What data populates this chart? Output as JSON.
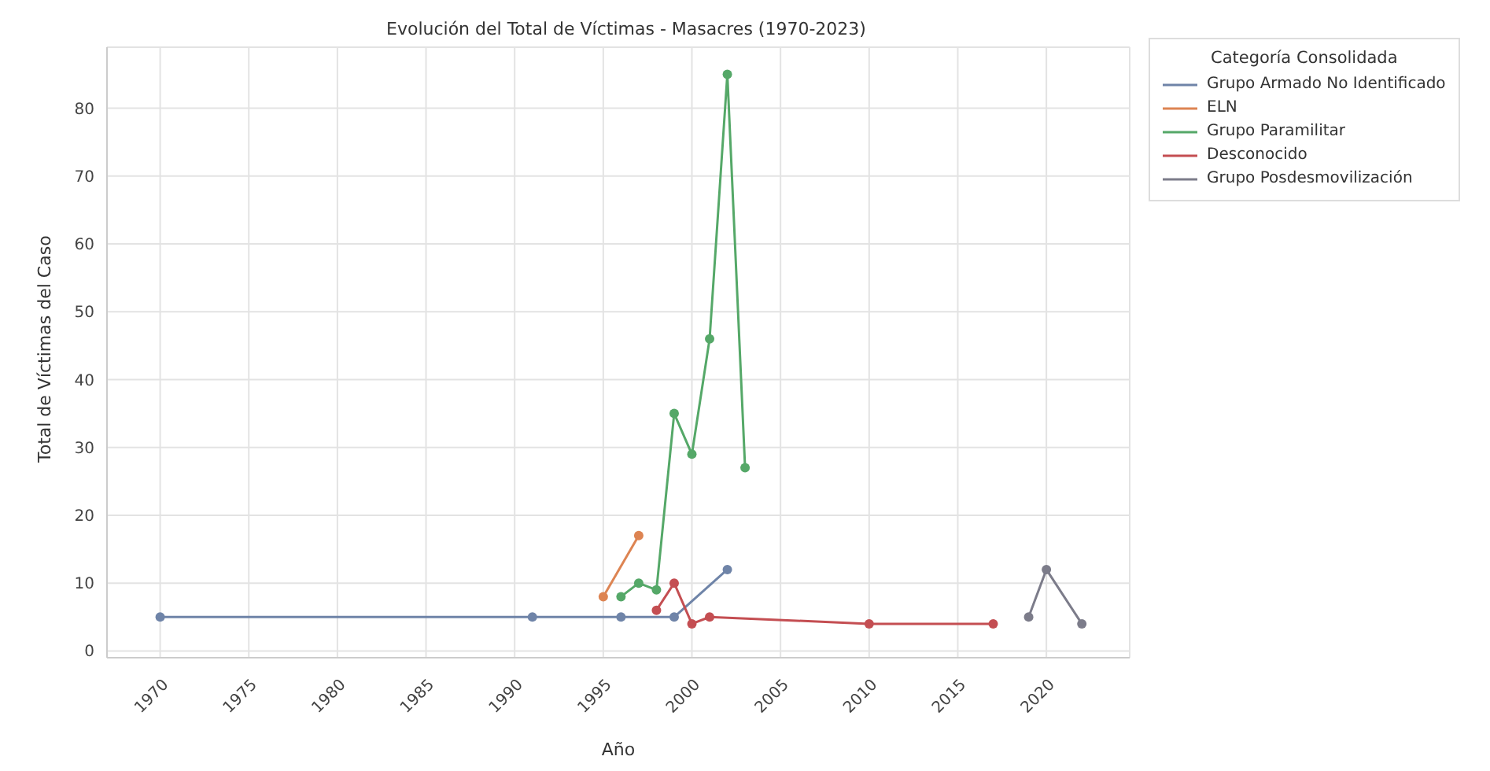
{
  "chart_data": {
    "type": "line",
    "title": "Evolución del Total de Víctimas - Masacres (1970-2023)",
    "xlabel": "Año",
    "ylabel": "Total de Víctimas del Caso",
    "legend_title": "Categoría Consolidada",
    "series": [
      {
        "name": "Grupo Armado No Identificado",
        "color": "#6f84a8",
        "x": [
          1970,
          1991,
          1996,
          1999,
          2002
        ],
        "values": [
          5,
          5,
          5,
          5,
          12
        ]
      },
      {
        "name": "ELN",
        "color": "#dd8452",
        "x": [
          1995,
          1997
        ],
        "values": [
          8,
          17
        ]
      },
      {
        "name": "Grupo Paramilitar",
        "color": "#55a868",
        "x": [
          1996,
          1997,
          1998,
          1999,
          2000,
          2001,
          2002,
          2003
        ],
        "values": [
          8,
          10,
          9,
          35,
          29,
          46,
          85,
          27
        ]
      },
      {
        "name": "Desconocido",
        "color": "#c44e52",
        "x": [
          1998,
          1999,
          2000,
          2001,
          2010,
          2017
        ],
        "values": [
          6,
          10,
          4,
          5,
          4,
          4
        ]
      },
      {
        "name": "Grupo Posdesmovilización",
        "color": "#7c7c8a",
        "x": [
          2019,
          2020,
          2022
        ],
        "values": [
          5,
          12,
          4
        ]
      }
    ],
    "xlim": [
      1967,
      2024.7
    ],
    "xticks": [
      1970,
      1975,
      1980,
      1985,
      1990,
      1995,
      2000,
      2005,
      2010,
      2015,
      2020
    ],
    "ylim": [
      -1,
      89
    ],
    "yticks": [
      0,
      10,
      20,
      30,
      40,
      50,
      60,
      70,
      80
    ],
    "grid": true,
    "legend": "top right",
    "marker": "circle",
    "line_style": "solid"
  }
}
